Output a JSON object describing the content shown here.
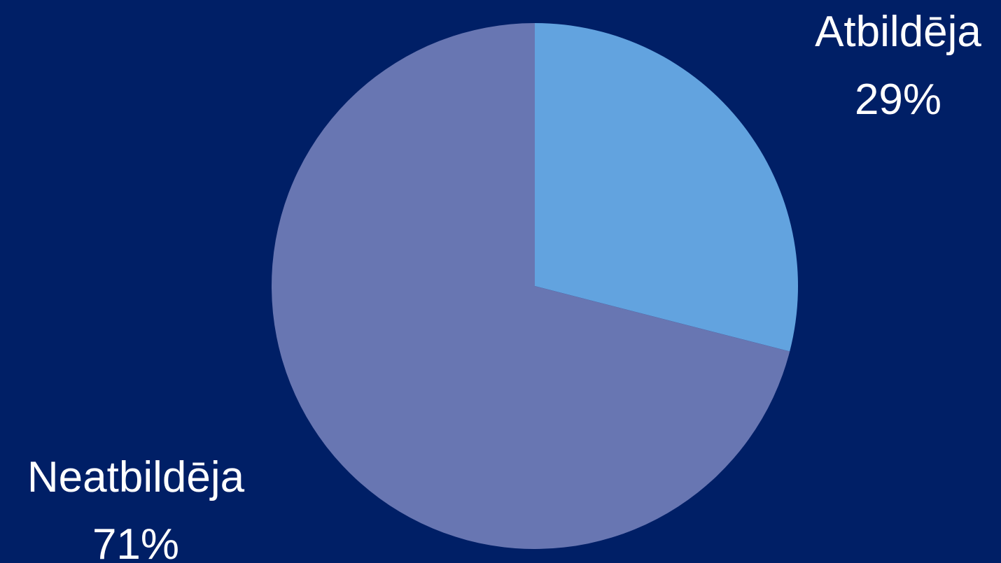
{
  "chart_data": {
    "type": "pie",
    "background": "#001f66",
    "start_angle_deg": 0,
    "direction": "clockwise",
    "slices": [
      {
        "name": "Atbildēja",
        "percent_label": "29%",
        "value": 29,
        "color": "#62a3df"
      },
      {
        "name": "Neatbildēja",
        "percent_label": "71%",
        "value": 71,
        "color": "#6876b2"
      }
    ]
  }
}
